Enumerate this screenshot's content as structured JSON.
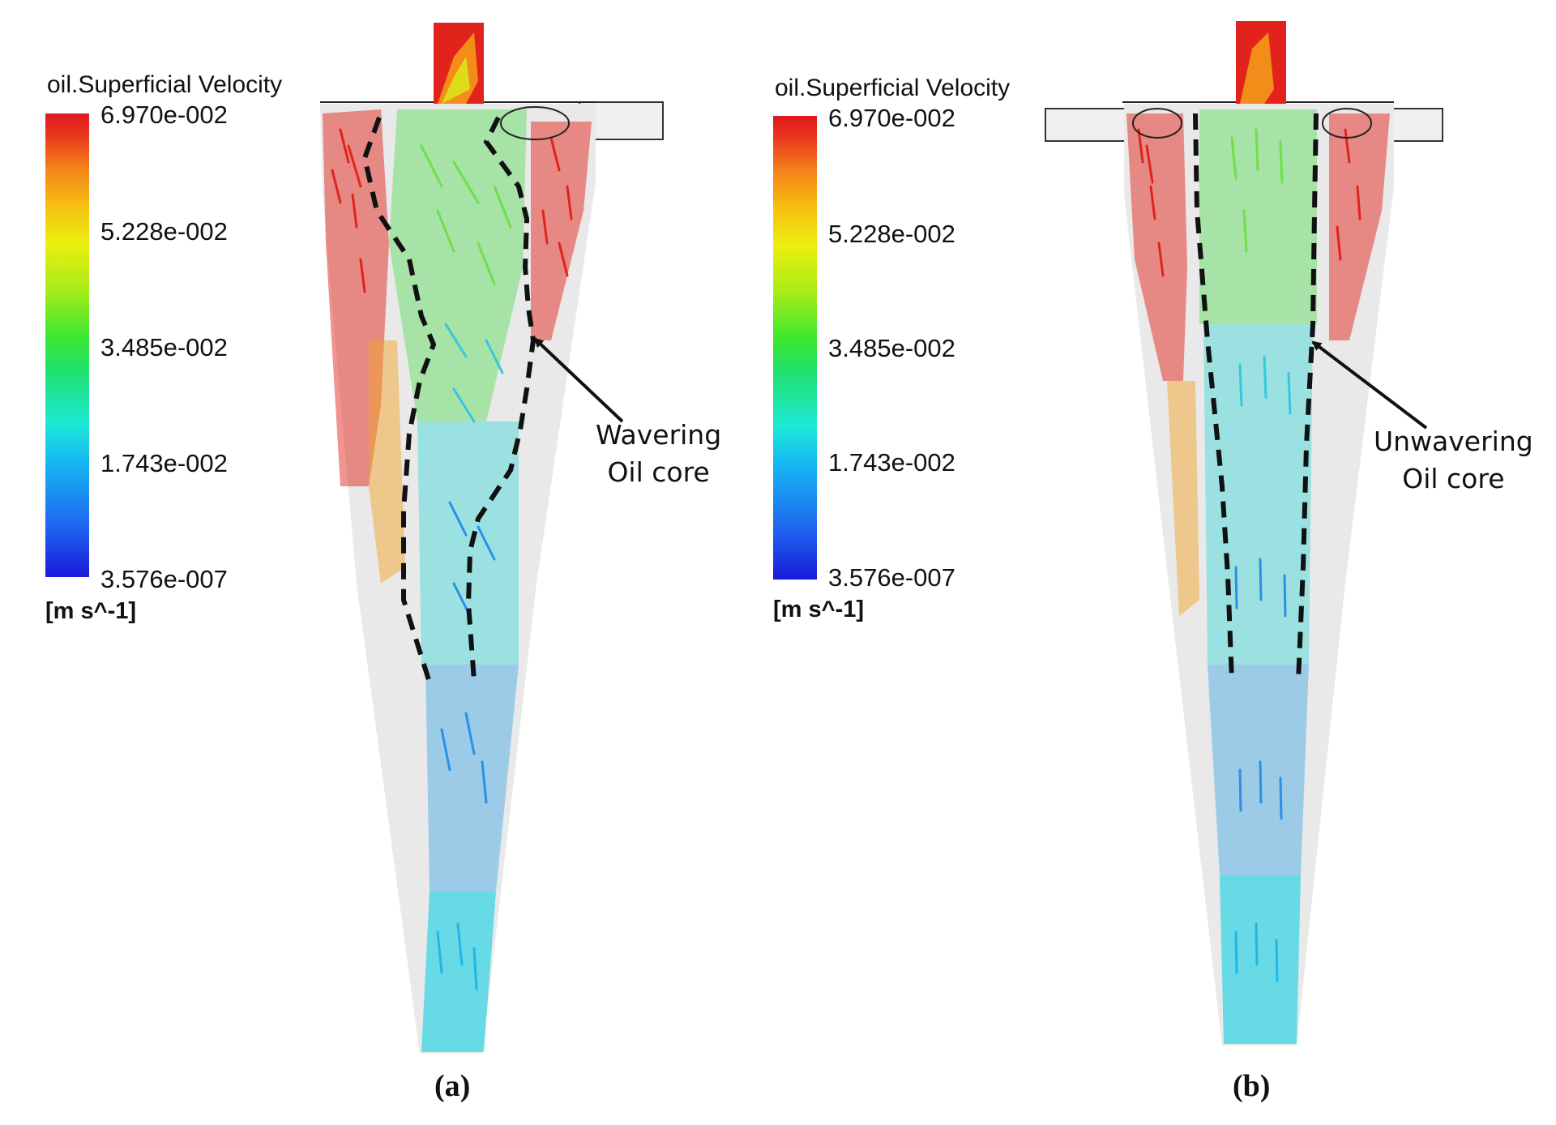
{
  "panels": [
    {
      "legend": {
        "title": "oil.Superficial Velocity",
        "ticks": [
          "6.970e-002",
          "5.228e-002",
          "3.485e-002",
          "1.743e-002",
          "3.576e-007"
        ],
        "unit": "[m s^-1]"
      },
      "annotation": {
        "line1": "Wavering",
        "line2": "Oil core"
      },
      "caption": "(a)"
    },
    {
      "legend": {
        "title": "oil.Superficial Velocity",
        "ticks": [
          "6.970e-002",
          "5.228e-002",
          "3.485e-002",
          "1.743e-002",
          "3.576e-007"
        ],
        "unit": "[m s^-1]"
      },
      "annotation": {
        "line1": "Unwavering",
        "line2": "Oil core"
      },
      "caption": "(b)"
    }
  ],
  "colors": {
    "red": "#e0161e",
    "orange": "#f4841a",
    "yellow": "#ecef10",
    "green": "#3de830",
    "cyan": "#1de9d6",
    "blue": "#1e6cf0",
    "body": "#e9e9e9"
  }
}
